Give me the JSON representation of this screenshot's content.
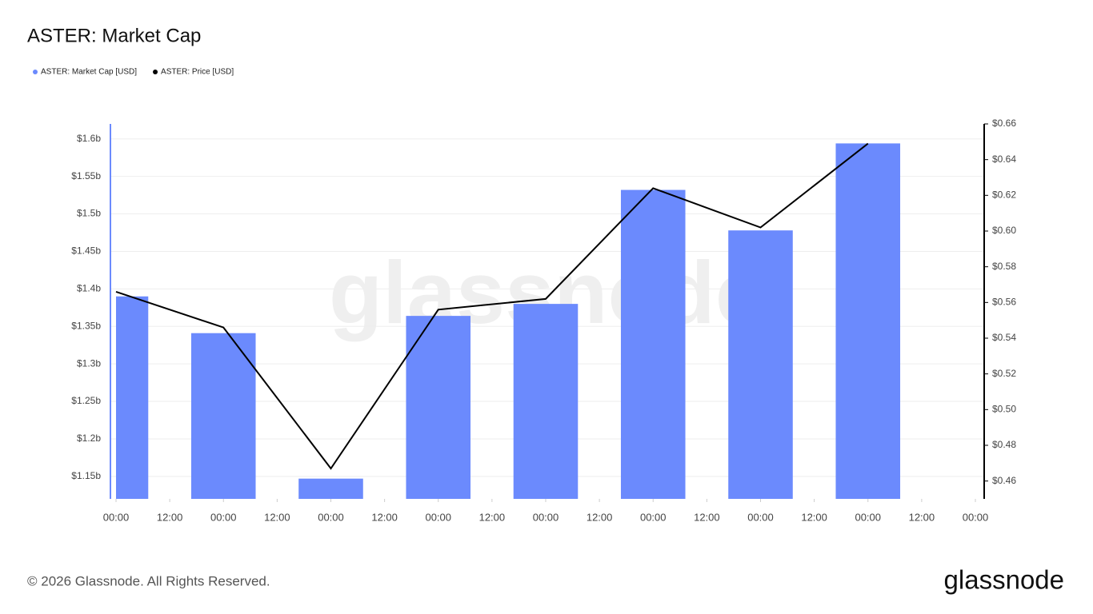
{
  "chart_data": {
    "type": "bar-line",
    "title": "ASTER: Market Cap",
    "watermark": "glassnode",
    "footer": "© 2026 Glassnode. All Rights Reserved.",
    "logo": "glassnode",
    "x": [
      0,
      24,
      48,
      72,
      96,
      120,
      144,
      168
    ],
    "xlim": [
      0,
      192
    ],
    "xticks": [
      {
        "value": 0,
        "label": "00:00"
      },
      {
        "value": 12,
        "label": "12:00"
      },
      {
        "value": 24,
        "label": "00:00"
      },
      {
        "value": 36,
        "label": "12:00"
      },
      {
        "value": 48,
        "label": "00:00"
      },
      {
        "value": 60,
        "label": "12:00"
      },
      {
        "value": 72,
        "label": "00:00"
      },
      {
        "value": 84,
        "label": "12:00"
      },
      {
        "value": 96,
        "label": "00:00"
      },
      {
        "value": 108,
        "label": "12:00"
      },
      {
        "value": 120,
        "label": "00:00"
      },
      {
        "value": 132,
        "label": "12:00"
      },
      {
        "value": 144,
        "label": "00:00"
      },
      {
        "value": 156,
        "label": "12:00"
      },
      {
        "value": 168,
        "label": "00:00"
      },
      {
        "value": 180,
        "label": "12:00"
      },
      {
        "value": 192,
        "label": "00:00"
      }
    ],
    "ylim": [
      1120000000,
      1620000000
    ],
    "yticks": [
      {
        "value": 1150000000,
        "label": "$1.15b"
      },
      {
        "value": 1200000000,
        "label": "$1.2b"
      },
      {
        "value": 1250000000,
        "label": "$1.25b"
      },
      {
        "value": 1300000000,
        "label": "$1.3b"
      },
      {
        "value": 1350000000,
        "label": "$1.35b"
      },
      {
        "value": 1400000000,
        "label": "$1.4b"
      },
      {
        "value": 1450000000,
        "label": "$1.45b"
      },
      {
        "value": 1500000000,
        "label": "$1.5b"
      },
      {
        "value": 1550000000,
        "label": "$1.55b"
      },
      {
        "value": 1600000000,
        "label": "$1.6b"
      }
    ],
    "y2lim": [
      0.45,
      0.66
    ],
    "y2ticks": [
      {
        "value": 0.46,
        "label": "$0.46"
      },
      {
        "value": 0.48,
        "label": "$0.48"
      },
      {
        "value": 0.5,
        "label": "$0.50"
      },
      {
        "value": 0.52,
        "label": "$0.52"
      },
      {
        "value": 0.54,
        "label": "$0.54"
      },
      {
        "value": 0.56,
        "label": "$0.56"
      },
      {
        "value": 0.58,
        "label": "$0.58"
      },
      {
        "value": 0.6,
        "label": "$0.60"
      },
      {
        "value": 0.62,
        "label": "$0.62"
      },
      {
        "value": 0.64,
        "label": "$0.64"
      },
      {
        "value": 0.66,
        "label": "$0.66"
      }
    ],
    "grid": true,
    "series": [
      {
        "name": "ASTER: Market Cap [USD]",
        "type": "bar",
        "color": "#6b8afd",
        "values": [
          1390000000,
          1341000000,
          1147000000,
          1364000000,
          1380000000,
          1532000000,
          1478000000,
          1594000000
        ]
      },
      {
        "name": "ASTER: Price [USD]",
        "type": "line",
        "axis": "y2",
        "color": "#000000",
        "values": [
          0.566,
          0.546,
          0.467,
          0.556,
          0.562,
          0.624,
          0.602,
          0.649
        ]
      }
    ]
  }
}
